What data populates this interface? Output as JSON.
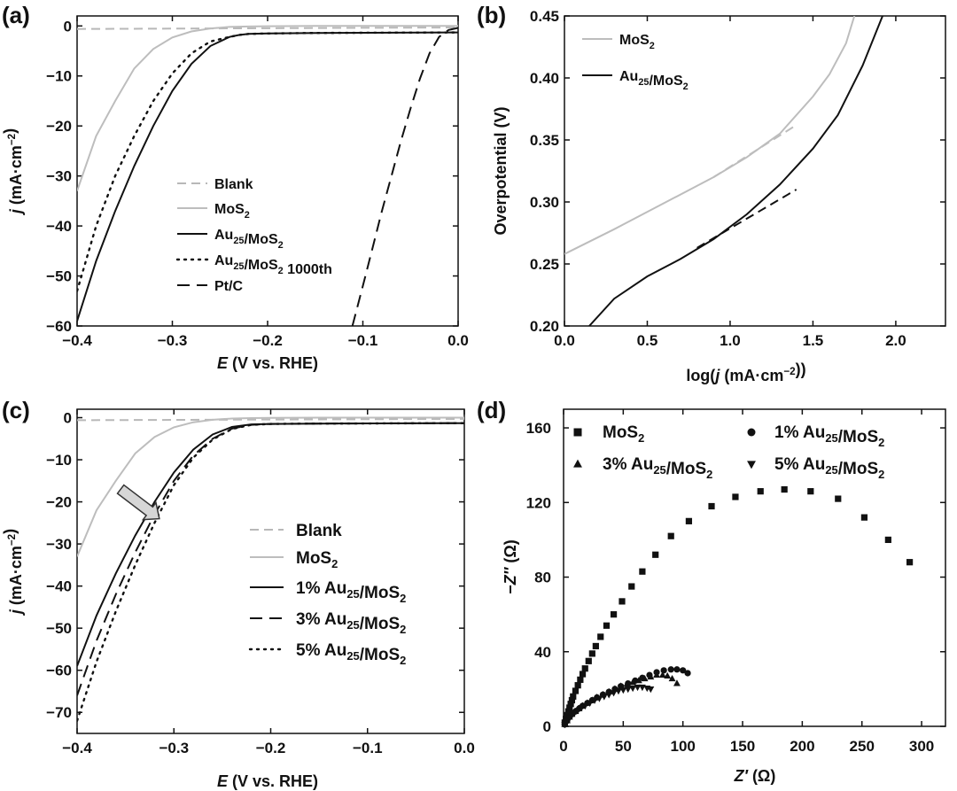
{
  "chart_data": [
    {
      "panel": "(a)",
      "type": "line",
      "xlabel": "E (V vs. RHE)",
      "ylabel": "j (mA·cm⁻²)",
      "xlim": [
        -0.4,
        0.0
      ],
      "ylim": [
        -60,
        2
      ],
      "xticks": [
        "−0.4",
        "−0.3",
        "−0.2",
        "−0.1",
        "0.0"
      ],
      "yticks": [
        "0",
        "−10",
        "−20",
        "−30",
        "−40",
        "−50",
        "−60"
      ],
      "legend": [
        "Blank",
        "MoS2",
        "Au25/MoS2",
        "Au25/MoS2 1000th",
        "Pt/C"
      ],
      "series": [
        {
          "name": "Blank",
          "color": "#b8b8b8",
          "dash": "dash",
          "x": [
            -0.4,
            0.0
          ],
          "y": [
            -0.6,
            -0.3
          ]
        },
        {
          "name": "MoS2",
          "color": "#bdbdbd",
          "dash": "solid",
          "x": [
            -0.4,
            -0.38,
            -0.36,
            -0.34,
            -0.32,
            -0.3,
            -0.28,
            -0.26,
            -0.24,
            -0.22,
            -0.2,
            -0.15,
            0.0
          ],
          "y": [
            -33,
            -22,
            -15,
            -8.5,
            -4.6,
            -2.3,
            -1.1,
            -0.5,
            -0.2,
            -0.1,
            -0.05,
            0,
            0
          ]
        },
        {
          "name": "Au25/MoS2",
          "color": "#111111",
          "dash": "solid",
          "x": [
            -0.4,
            -0.38,
            -0.36,
            -0.34,
            -0.32,
            -0.3,
            -0.28,
            -0.26,
            -0.24,
            -0.23,
            -0.22,
            -0.2,
            -0.15,
            0.0
          ],
          "y": [
            -59,
            -47,
            -37,
            -28,
            -20,
            -13,
            -7.6,
            -4,
            -2.2,
            -1.8,
            -1.6,
            -1.5,
            -1.4,
            -1.3
          ]
        },
        {
          "name": "Au25/MoS2 1000th",
          "color": "#111111",
          "dash": "dot",
          "x": [
            -0.4,
            -0.38,
            -0.36,
            -0.34,
            -0.32,
            -0.3,
            -0.28,
            -0.26,
            -0.24,
            -0.23,
            -0.22,
            -0.2,
            -0.15,
            0.0
          ],
          "y": [
            -53,
            -40,
            -30,
            -22,
            -15,
            -9.5,
            -5.5,
            -3.1,
            -2.2,
            -1.8,
            -1.6,
            -1.5,
            -1.4,
            -1.3
          ]
        },
        {
          "name": "Pt/C",
          "color": "#111111",
          "dash": "longdash",
          "x": [
            -0.111,
            -0.1,
            -0.09,
            -0.08,
            -0.07,
            -0.06,
            -0.05,
            -0.04,
            -0.03,
            -0.02,
            -0.01,
            0.0
          ],
          "y": [
            -60,
            -52,
            -44.5,
            -37,
            -30,
            -23,
            -16.5,
            -10.5,
            -5.5,
            -2.2,
            -0.8,
            -0.4
          ]
        }
      ]
    },
    {
      "panel": "(b)",
      "type": "line",
      "xlabel": "log(j (mA·cm⁻²))",
      "ylabel": "Overpotential (V)",
      "xlim": [
        0.0,
        2.3
      ],
      "ylim": [
        0.2,
        0.45
      ],
      "xticks": [
        "0.0",
        "0.5",
        "1.0",
        "1.5",
        "2.0"
      ],
      "yticks": [
        "0.20",
        "0.25",
        "0.30",
        "0.35",
        "0.40",
        "0.45"
      ],
      "legend": [
        "MoS2",
        "Au25/MoS2"
      ],
      "series": [
        {
          "name": "MoS2",
          "color": "#bdbdbd",
          "dash": "solid",
          "x": [
            0.0,
            0.3,
            0.6,
            0.9,
            1.1,
            1.3,
            1.5,
            1.6,
            1.7,
            1.75
          ],
          "y": [
            0.258,
            0.278,
            0.299,
            0.32,
            0.336,
            0.355,
            0.385,
            0.403,
            0.428,
            0.45
          ]
        },
        {
          "name": "MoS2 Tafel fit",
          "color": "#bdbdbd",
          "dash": "dash",
          "x": [
            0.9,
            1.4
          ],
          "y": [
            0.32,
            0.362
          ]
        },
        {
          "name": "Au25/MoS2",
          "color": "#111111",
          "dash": "solid",
          "x": [
            0.15,
            0.3,
            0.5,
            0.7,
            0.9,
            1.1,
            1.3,
            1.5,
            1.65,
            1.8,
            1.92
          ],
          "y": [
            0.2,
            0.222,
            0.24,
            0.254,
            0.27,
            0.29,
            0.314,
            0.343,
            0.37,
            0.41,
            0.45
          ]
        },
        {
          "name": "Au25/MoS2 Tafel fit",
          "color": "#111111",
          "dash": "dash",
          "x": [
            0.8,
            1.4
          ],
          "y": [
            0.263,
            0.31
          ]
        }
      ]
    },
    {
      "panel": "(c)",
      "type": "line",
      "xlabel": "E (V vs. RHE)",
      "ylabel": "j (mA·cm⁻²)",
      "xlim": [
        -0.4,
        0.0
      ],
      "ylim": [
        -75,
        2
      ],
      "xticks": [
        "−0.4",
        "−0.3",
        "−0.2",
        "−0.1",
        "0.0"
      ],
      "yticks": [
        "0",
        "−10",
        "−20",
        "−30",
        "−40",
        "−50",
        "−60",
        "−70"
      ],
      "legend": [
        "Blank",
        "MoS2",
        "1% Au25/MoS2",
        "3% Au25/MoS2",
        "5% Au25/MoS2"
      ],
      "series": [
        {
          "name": "Blank",
          "color": "#b8b8b8",
          "dash": "dash",
          "x": [
            -0.4,
            0.0
          ],
          "y": [
            -0.6,
            -0.3
          ]
        },
        {
          "name": "MoS2",
          "color": "#bdbdbd",
          "dash": "solid",
          "x": [
            -0.4,
            -0.38,
            -0.36,
            -0.34,
            -0.32,
            -0.3,
            -0.28,
            -0.26,
            -0.24,
            -0.22,
            -0.2,
            -0.15,
            0.0
          ],
          "y": [
            -33,
            -22,
            -15,
            -8.5,
            -4.6,
            -2.3,
            -1.1,
            -0.5,
            -0.2,
            -0.1,
            -0.05,
            0,
            0
          ]
        },
        {
          "name": "1% Au25/MoS2",
          "color": "#111111",
          "dash": "solid",
          "x": [
            -0.4,
            -0.38,
            -0.36,
            -0.34,
            -0.32,
            -0.3,
            -0.28,
            -0.26,
            -0.24,
            -0.22,
            -0.2,
            -0.15,
            0.0
          ],
          "y": [
            -59,
            -47,
            -37,
            -28,
            -20,
            -13,
            -7.6,
            -4,
            -2.2,
            -1.6,
            -1.5,
            -1.4,
            -1.3
          ]
        },
        {
          "name": "3% Au25/MoS2",
          "color": "#111111",
          "dash": "longdash",
          "x": [
            -0.4,
            -0.38,
            -0.36,
            -0.34,
            -0.32,
            -0.3,
            -0.28,
            -0.26,
            -0.24,
            -0.22,
            -0.2,
            -0.15,
            0.0
          ],
          "y": [
            -66,
            -53,
            -42,
            -32,
            -23,
            -15,
            -9,
            -5,
            -2.6,
            -1.7,
            -1.5,
            -1.4,
            -1.3
          ]
        },
        {
          "name": "5% Au25/MoS2",
          "color": "#111111",
          "dash": "dot",
          "x": [
            -0.4,
            -0.38,
            -0.36,
            -0.34,
            -0.32,
            -0.3,
            -0.28,
            -0.26,
            -0.24,
            -0.22,
            -0.2,
            -0.15,
            0.0
          ],
          "y": [
            -72,
            -58,
            -46,
            -35,
            -25,
            -16,
            -9.5,
            -5.2,
            -2.7,
            -1.7,
            -1.5,
            -1.4,
            -1.3
          ]
        }
      ]
    },
    {
      "panel": "(d)",
      "type": "scatter",
      "xlabel": "Z′ (Ω)",
      "ylabel": "−Z″ (Ω)",
      "xlim": [
        0,
        320
      ],
      "ylim": [
        0,
        170
      ],
      "xticks": [
        "0",
        "50",
        "100",
        "150",
        "200",
        "250",
        "300"
      ],
      "yticks": [
        "0",
        "40",
        "80",
        "120",
        "160"
      ],
      "legend": [
        "MoS2",
        "1% Au25/MoS2",
        "3% Au25/MoS2",
        "5% Au25/MoS2"
      ],
      "series": [
        {
          "name": "MoS2",
          "marker": "square",
          "x": [
            1,
            2,
            3,
            4,
            5,
            6,
            7,
            8,
            10,
            12,
            14,
            16,
            18,
            21,
            24,
            27,
            31,
            36,
            42,
            49,
            57,
            66,
            77,
            90,
            105,
            124,
            144,
            165,
            185,
            207,
            230,
            252,
            272,
            290
          ],
          "y": [
            2,
            4,
            6,
            8,
            10,
            12,
            14,
            16,
            19,
            22,
            25,
            28,
            31,
            35,
            39,
            43,
            48,
            54,
            60,
            67,
            75,
            83,
            92,
            102,
            110,
            118,
            123,
            126,
            127,
            126,
            122,
            112,
            100,
            88
          ]
        },
        {
          "name": "1% Au25/MoS2",
          "marker": "circle",
          "x": [
            1,
            3,
            5,
            7,
            10,
            13,
            16,
            20,
            24,
            28,
            33,
            38,
            43,
            48,
            54,
            60,
            66,
            72,
            78,
            84,
            90,
            95,
            100,
            104
          ],
          "y": [
            1,
            3,
            5,
            6.5,
            8,
            9.5,
            11,
            12.5,
            14,
            15.5,
            17,
            18.5,
            20,
            21.5,
            23,
            24.5,
            26,
            27.5,
            29,
            30,
            30.5,
            30.5,
            30,
            28.5
          ]
        },
        {
          "name": "3% Au25/MoS2",
          "marker": "triangle-up",
          "x": [
            1,
            3,
            5,
            7,
            10,
            13,
            16,
            20,
            24,
            28,
            33,
            38,
            43,
            48,
            53,
            58,
            63,
            68,
            73,
            78,
            83,
            87,
            91,
            95
          ],
          "y": [
            1,
            3,
            5,
            6.5,
            8,
            9.5,
            11,
            12.5,
            14,
            15.5,
            17,
            18.5,
            20,
            21.5,
            22.5,
            23.5,
            24.5,
            25.5,
            26.5,
            27.5,
            27.5,
            27,
            25.5,
            23
          ]
        },
        {
          "name": "5% Au25/MoS2",
          "marker": "triangle-down",
          "x": [
            1,
            3,
            5,
            7,
            9,
            12,
            15,
            18,
            22,
            26,
            30,
            34,
            38,
            42,
            46,
            50,
            54,
            58,
            62,
            66,
            70,
            73
          ],
          "y": [
            1,
            3,
            4.5,
            6,
            7,
            8.5,
            10,
            11,
            12.5,
            14,
            15,
            16,
            17,
            18,
            19,
            19.5,
            20,
            20.5,
            21,
            21,
            20.5,
            20
          ]
        }
      ]
    }
  ]
}
